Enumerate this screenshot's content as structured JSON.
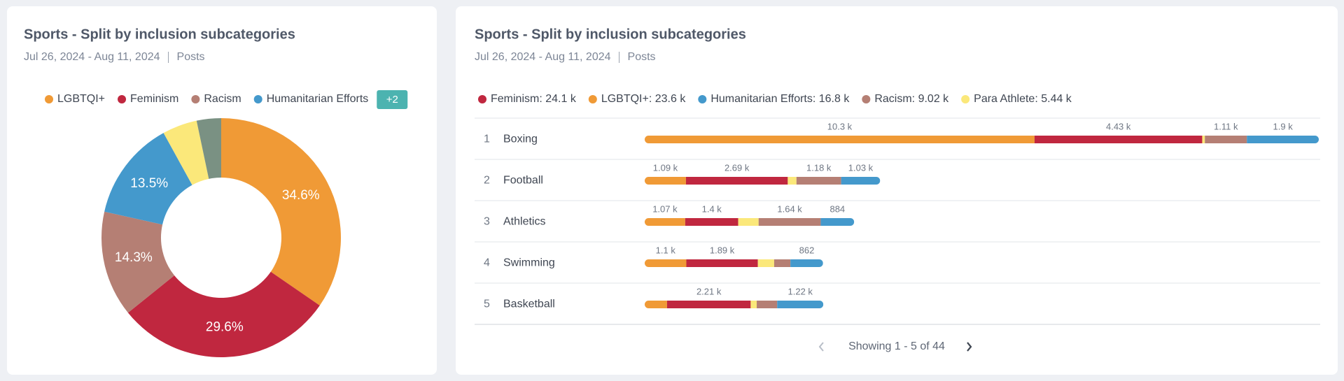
{
  "chart_data": [
    {
      "type": "donut",
      "title": "Sports - Split by inclusion subcategories",
      "date_range": "Jul 26, 2024 - Aug 11, 2024",
      "metric": "Posts",
      "categories": [
        "LGBTQI+",
        "Feminism",
        "Racism",
        "Humanitarian Efforts",
        null,
        null
      ],
      "values": [
        34.6,
        29.6,
        14.3,
        13.5,
        4.7,
        3.3
      ],
      "value_labels": [
        "34.6%",
        "29.6%",
        "14.3%",
        "13.5%",
        null,
        null
      ],
      "colors": [
        "#f09a36",
        "#c0273f",
        "#b57f74",
        "#4499cc",
        "#fbe87a",
        "#7a9183"
      ],
      "legend_more": "+2"
    },
    {
      "type": "stacked-bar",
      "orientation": "horizontal",
      "title": "Sports - Split by inclusion subcategories",
      "date_range": "Jul 26, 2024 - Aug 11, 2024",
      "metric": "Posts",
      "ranks": [
        1,
        2,
        3,
        4,
        5
      ],
      "categories": [
        "Boxing",
        "Football",
        "Athletics",
        "Swimming",
        "Basketball"
      ],
      "stack_order": [
        1,
        0,
        4,
        3,
        2
      ],
      "series": [
        {
          "name": "Feminism: 24.1 k",
          "color": "#c0273f",
          "values": [
            4430,
            2690,
            1400,
            1890,
            2210
          ],
          "value_labels": [
            "4.43 k",
            "2.69 k",
            "1.4 k",
            "1.89 k",
            "2.21 k"
          ]
        },
        {
          "name": "LGBTQI+: 23.6 k",
          "color": "#f09a36",
          "values": [
            10300,
            1090,
            1070,
            1100,
            590
          ],
          "value_labels": [
            "10.3 k",
            "1.09 k",
            "1.07 k",
            "1.1 k",
            null
          ]
        },
        {
          "name": "Humanitarian Efforts: 16.8 k",
          "color": "#4499cc",
          "values": [
            1900,
            1030,
            884,
            862,
            1220
          ],
          "value_labels": [
            "1.9 k",
            "1.03 k",
            "884",
            "862",
            "1.22 k"
          ]
        },
        {
          "name": "Racism: 9.02 k",
          "color": "#b57f74",
          "values": [
            1110,
            1180,
            1640,
            430,
            540
          ],
          "value_labels": [
            "1.11 k",
            "1.18 k",
            "1.64 k",
            null,
            null
          ]
        },
        {
          "name": "Para Athlete: 5.44 k",
          "color": "#fbe87a",
          "values": [
            70,
            230,
            540,
            430,
            160
          ],
          "value_labels": [
            null,
            null,
            null,
            null,
            null
          ]
        }
      ],
      "pagination": "Showing 1 - 5 of 44"
    }
  ]
}
